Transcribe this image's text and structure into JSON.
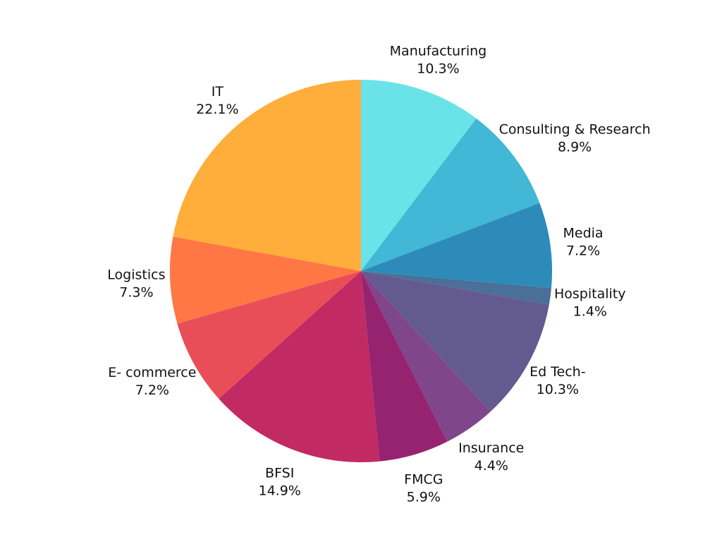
{
  "chart_data": {
    "type": "pie",
    "title": "",
    "start": "top",
    "direction": "clockwise",
    "slices": [
      {
        "label": "Manufacturing",
        "value": 10.3,
        "value_label": "10.3%",
        "color": "#6AE3E8"
      },
      {
        "label": "Consulting & Research",
        "value": 8.9,
        "value_label": "8.9%",
        "color": "#42B7D6"
      },
      {
        "label": "Media",
        "value": 7.2,
        "value_label": "7.2%",
        "color": "#2D8BBA"
      },
      {
        "label": "Hospitality",
        "value": 1.4,
        "value_label": "1.4%",
        "color": "#4A6F98"
      },
      {
        "label": "Ed Tech-",
        "value": 10.3,
        "value_label": "10.3%",
        "color": "#635A8F"
      },
      {
        "label": "Insurance",
        "value": 4.4,
        "value_label": "4.4%",
        "color": "#80468C"
      },
      {
        "label": "FMCG",
        "value": 5.9,
        "value_label": "5.9%",
        "color": "#962370"
      },
      {
        "label": "BFSI",
        "value": 14.9,
        "value_label": "14.9%",
        "color": "#C12A62"
      },
      {
        "label": "E- commerce",
        "value": 7.2,
        "value_label": "7.2%",
        "color": "#E94E58"
      },
      {
        "label": "Logistics",
        "value": 7.3,
        "value_label": "7.3%",
        "color": "#FF7744"
      },
      {
        "label": "IT",
        "value": 22.1,
        "value_label": "22.1%",
        "color": "#FFAD3B"
      }
    ]
  }
}
